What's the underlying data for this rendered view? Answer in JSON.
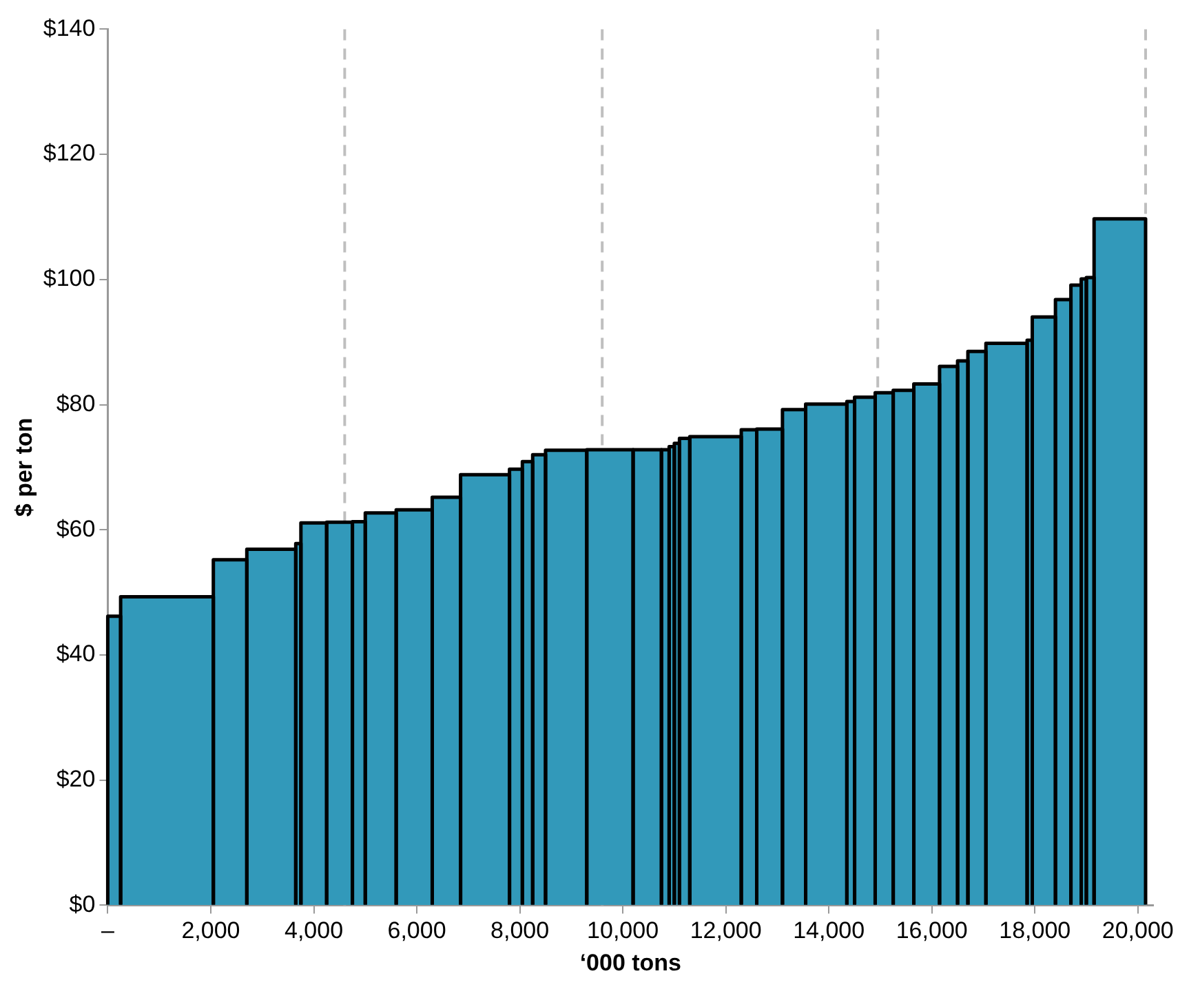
{
  "chart_data": {
    "type": "histogram",
    "xlabel": "‘000 tons",
    "ylabel": "$ per ton",
    "bins": [
      0,
      250,
      2050,
      2700,
      3650,
      3750,
      4250,
      4750,
      5000,
      5600,
      6300,
      6850,
      7800,
      8050,
      8250,
      8500,
      9300,
      10200,
      10750,
      10900,
      11000,
      11100,
      11300,
      12300,
      12600,
      13100,
      13550,
      14350,
      14500,
      14900,
      15250,
      15650,
      16150,
      16500,
      16700,
      17050,
      17850,
      17950,
      18400,
      18700,
      18900,
      19000,
      19150,
      20150
    ],
    "values": [
      46.2,
      49.3,
      55.2,
      56.9,
      57.8,
      61.1,
      61.2,
      61.3,
      62.7,
      63.2,
      65.2,
      68.8,
      69.7,
      70.9,
      72.0,
      72.7,
      72.8,
      72.8,
      72.8,
      73.3,
      73.8,
      74.6,
      74.9,
      76.0,
      76.1,
      79.2,
      80.1,
      80.5,
      81.2,
      81.9,
      82.3,
      83.3,
      86.1,
      87.0,
      88.5,
      89.8,
      90.3,
      94.0,
      96.8,
      99.1,
      100.1,
      100.3,
      109.7
    ],
    "color": "#3299ba",
    "xlim": [
      0,
      20300
    ],
    "xticks": [
      {
        "value": 0,
        "label": "–"
      },
      {
        "value": 2000,
        "label": "2,000"
      },
      {
        "value": 4000,
        "label": "4,000"
      },
      {
        "value": 6000,
        "label": "6,000"
      },
      {
        "value": 8000,
        "label": "8,000"
      },
      {
        "value": 10000,
        "label": "10,000"
      },
      {
        "value": 12000,
        "label": "12,000"
      },
      {
        "value": 14000,
        "label": "14,000"
      },
      {
        "value": 16000,
        "label": "16,000"
      },
      {
        "value": 18000,
        "label": "18,000"
      },
      {
        "value": 20000,
        "label": "20,000"
      }
    ],
    "ylim": [
      0,
      140
    ],
    "yticks": [
      {
        "value": 0,
        "label": "$0"
      },
      {
        "value": 20,
        "label": "$20"
      },
      {
        "value": 40,
        "label": "$40"
      },
      {
        "value": 60,
        "label": "$60"
      },
      {
        "value": 80,
        "label": "$80"
      },
      {
        "value": 100,
        "label": "$100"
      },
      {
        "value": 120,
        "label": "$120"
      },
      {
        "value": 140,
        "label": "$140"
      }
    ],
    "ref_lines": [
      {
        "axis": "x",
        "value": 4600,
        "color": "#bfbfbf",
        "line_style": "dashed"
      },
      {
        "axis": "x",
        "value": 9600,
        "color": "#bfbfbf",
        "line_style": "dashed"
      },
      {
        "axis": "x",
        "value": 14950,
        "color": "#bfbfbf",
        "line_style": "dashed"
      },
      {
        "axis": "x",
        "value": 20150,
        "color": "#bfbfbf",
        "line_style": "dashed"
      }
    ]
  }
}
